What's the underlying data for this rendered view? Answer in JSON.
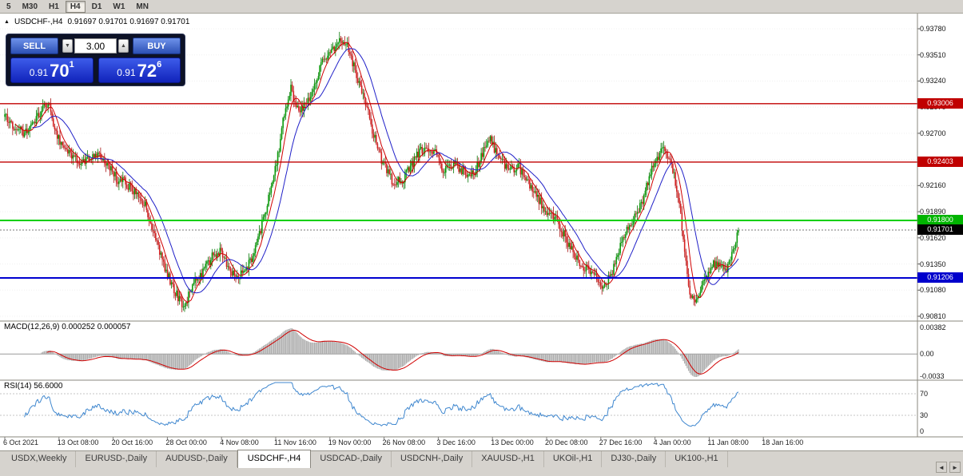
{
  "toolbar": {
    "timeframes": [
      {
        "label": "5",
        "active": false
      },
      {
        "label": "M30",
        "active": false
      },
      {
        "label": "H1",
        "active": false
      },
      {
        "label": "H4",
        "active": true
      },
      {
        "label": "D1",
        "active": false
      },
      {
        "label": "W1",
        "active": false
      },
      {
        "label": "MN",
        "active": false
      }
    ]
  },
  "chart_header": {
    "title": "USDCHF-,H4",
    "ohlc": "0.91697 0.91701 0.91697 0.91701"
  },
  "trade_panel": {
    "sell_label": "SELL",
    "buy_label": "BUY",
    "volume": "3.00",
    "volume_down_icon": "▼",
    "volume_up_icon": "▲",
    "collapse_icon": "▲",
    "bid": {
      "prefix": "0.91",
      "big": "70",
      "pip": "1"
    },
    "ask": {
      "prefix": "0.91",
      "big": "72",
      "pip": "6"
    }
  },
  "price_axis": {
    "ticks": [
      "0.93780",
      "0.93510",
      "0.93240",
      "0.92970",
      "0.92700",
      "0.92430",
      "0.92160",
      "0.91890",
      "0.91620",
      "0.91350",
      "0.91080",
      "0.90810"
    ],
    "badges": [
      {
        "name": "resistance-upper",
        "label": "0.93006",
        "price": 0.93006,
        "color": "#c00000"
      },
      {
        "name": "resistance-lower",
        "label": "0.92403",
        "price": 0.92403,
        "color": "#c00000"
      },
      {
        "name": "level-green",
        "label": "0.91800",
        "price": 0.918,
        "color": "#00b400"
      },
      {
        "name": "current-price",
        "label": "0.91701",
        "price": 0.91701,
        "color": "#000000"
      },
      {
        "name": "support-blue",
        "label": "0.91206",
        "price": 0.91206,
        "color": "#0000cc"
      }
    ]
  },
  "levels": [
    {
      "price": 0.93006,
      "color": "#c00000",
      "width": 1.4
    },
    {
      "price": 0.92403,
      "color": "#c00000",
      "width": 1.4
    },
    {
      "price": 0.918,
      "color": "#00d000",
      "width": 2
    },
    {
      "price": 0.91206,
      "color": "#0000d0",
      "width": 2
    }
  ],
  "macd_panel": {
    "label": "MACD(12,26,9) 0.000252 0.000057",
    "axis": [
      "0.00382",
      "0.00",
      "-0.0033"
    ],
    "max": 0.00382,
    "min": -0.0033
  },
  "rsi_panel": {
    "label": "RSI(14) 56.6000",
    "axis": [
      "70",
      "30",
      "0"
    ],
    "levels": [
      70,
      30
    ]
  },
  "time_axis": [
    "6 Oct 2021",
    "13 Oct 08:00",
    "20 Oct 16:00",
    "28 Oct 00:00",
    "4 Nov 08:00",
    "11 Nov 16:00",
    "19 Nov 00:00",
    "26 Nov 08:00",
    "3 Dec 16:00",
    "13 Dec 00:00",
    "20 Dec 08:00",
    "27 Dec 16:00",
    "4 Jan 00:00",
    "11 Jan 08:00",
    "18 Jan 16:00"
  ],
  "tabs": {
    "scroll_left_icon": "◄",
    "scroll_right_icon": "►",
    "items": [
      {
        "label": "USDX,Weekly",
        "active": false
      },
      {
        "label": "EURUSD-,Daily",
        "active": false
      },
      {
        "label": "AUDUSD-,Daily",
        "active": false
      },
      {
        "label": "USDCHF-,H4",
        "active": true
      },
      {
        "label": "USDCAD-,Daily",
        "active": false
      },
      {
        "label": "USDCNH-,Daily",
        "active": false
      },
      {
        "label": "XAUUSD-,H1",
        "active": false
      },
      {
        "label": "UKOil-,H1",
        "active": false
      },
      {
        "label": "DJ30-,Daily",
        "active": false
      },
      {
        "label": "UK100-,H1",
        "active": false
      }
    ]
  },
  "chart_data": {
    "type": "candlestick",
    "symbol": "USDCHF-",
    "timeframe": "H4",
    "ohlc_current": {
      "open": "0.91697",
      "high": "0.91701",
      "low": "0.91697",
      "close": "0.91701"
    },
    "last_price": 0.91701,
    "x_range": [
      "6 Oct 2021",
      "18 Jan 16:00"
    ],
    "price_axis_top": 0.9378,
    "price_axis_bottom": 0.9081,
    "moving_averages": [
      {
        "name": "ma-fast",
        "period": 8,
        "color": "#d00000"
      },
      {
        "name": "ma-slow",
        "period": 21,
        "color": "#2020c8"
      }
    ],
    "indicators": [
      {
        "name": "MACD",
        "params": "12,26,9",
        "values": [
          0.000252,
          5.7e-05
        ]
      },
      {
        "name": "RSI",
        "params": "14",
        "value": 56.6
      }
    ],
    "colors": {
      "up": "#0a9c0a",
      "down": "#d42222",
      "up_wick": "#067806",
      "down_wick": "#a81414",
      "ma_fast": "#d00000",
      "ma_slow": "#2020c8",
      "macd_hist": "#adadad",
      "macd_signal": "#d00000",
      "rsi": "#3f87cf"
    },
    "price_path": [
      [
        6,
        0.9287
      ],
      [
        18,
        0.9278
      ],
      [
        30,
        0.9269
      ],
      [
        40,
        0.9281
      ],
      [
        52,
        0.9292
      ],
      [
        60,
        0.9303
      ],
      [
        68,
        0.9276
      ],
      [
        78,
        0.9257
      ],
      [
        90,
        0.9246
      ],
      [
        102,
        0.924
      ],
      [
        114,
        0.9244
      ],
      [
        124,
        0.9251
      ],
      [
        134,
        0.9237
      ],
      [
        146,
        0.9223
      ],
      [
        158,
        0.9219
      ],
      [
        170,
        0.9207
      ],
      [
        182,
        0.9196
      ],
      [
        194,
        0.9161
      ],
      [
        206,
        0.9133
      ],
      [
        218,
        0.9107
      ],
      [
        230,
        0.9092
      ],
      [
        242,
        0.9113
      ],
      [
        254,
        0.9127
      ],
      [
        266,
        0.9143
      ],
      [
        276,
        0.915
      ],
      [
        288,
        0.9129
      ],
      [
        300,
        0.9122
      ],
      [
        312,
        0.9136
      ],
      [
        322,
        0.9156
      ],
      [
        334,
        0.9196
      ],
      [
        346,
        0.9238
      ],
      [
        356,
        0.9292
      ],
      [
        364,
        0.9316
      ],
      [
        372,
        0.9294
      ],
      [
        382,
        0.9299
      ],
      [
        392,
        0.9317
      ],
      [
        402,
        0.9341
      ],
      [
        412,
        0.9353
      ],
      [
        422,
        0.9361
      ],
      [
        430,
        0.9368
      ],
      [
        438,
        0.9352
      ],
      [
        446,
        0.9331
      ],
      [
        456,
        0.9306
      ],
      [
        466,
        0.9272
      ],
      [
        478,
        0.9241
      ],
      [
        490,
        0.9222
      ],
      [
        502,
        0.922
      ],
      [
        512,
        0.9233
      ],
      [
        522,
        0.9248
      ],
      [
        532,
        0.9256
      ],
      [
        544,
        0.9251
      ],
      [
        556,
        0.9231
      ],
      [
        568,
        0.9237
      ],
      [
        580,
        0.9231
      ],
      [
        592,
        0.9227
      ],
      [
        604,
        0.9249
      ],
      [
        614,
        0.9263
      ],
      [
        624,
        0.9245
      ],
      [
        636,
        0.9231
      ],
      [
        648,
        0.9237
      ],
      [
        660,
        0.9219
      ],
      [
        672,
        0.9205
      ],
      [
        684,
        0.9189
      ],
      [
        696,
        0.9181
      ],
      [
        708,
        0.9161
      ],
      [
        720,
        0.9141
      ],
      [
        732,
        0.9131
      ],
      [
        744,
        0.9125
      ],
      [
        756,
        0.9109
      ],
      [
        768,
        0.9131
      ],
      [
        780,
        0.9163
      ],
      [
        792,
        0.9179
      ],
      [
        804,
        0.9201
      ],
      [
        816,
        0.9233
      ],
      [
        828,
        0.9253
      ],
      [
        838,
        0.9247
      ],
      [
        848,
        0.9209
      ],
      [
        856,
        0.9156
      ],
      [
        864,
        0.9099
      ],
      [
        872,
        0.9097
      ],
      [
        880,
        0.9117
      ],
      [
        890,
        0.9133
      ],
      [
        900,
        0.9137
      ],
      [
        910,
        0.9131
      ],
      [
        918,
        0.9147
      ],
      [
        924,
        0.9169
      ]
    ]
  }
}
